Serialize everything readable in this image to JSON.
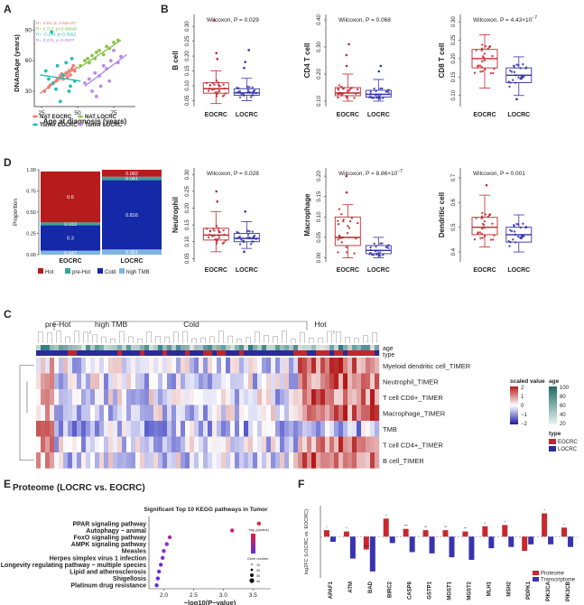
{
  "panels": {
    "A": "A",
    "B": "B",
    "C": "C",
    "D": "D",
    "E": "E",
    "F": "F"
  },
  "chart_data": [
    {
      "id": "A",
      "type": "scatter",
      "xlabel": "Age at diagnosis (years)",
      "ylabel": "DNAmAge (years)",
      "xticks": [
        "25",
        "50",
        "75"
      ],
      "yticks": [
        "30",
        "60",
        "90"
      ],
      "xlim": [
        20,
        90
      ],
      "ylim": [
        15,
        100
      ],
      "annotations": [
        "R= 0.64, p=3.52e-07",
        "R= 0.717, p=0.00045",
        "R= -0.144, p=0.3552",
        "R= 0.276, p=0.0507"
      ],
      "annotation_colors": [
        "#e8776d",
        "#7ab34a",
        "#1fb8b0",
        "#b27ce0"
      ],
      "legend": [
        "NAT EOCRC",
        "NAT LOCRC",
        "Tumor EOCRC",
        "Tumor LOCRC"
      ],
      "colors": [
        "#f07f76",
        "#8bc34a",
        "#23bcb4",
        "#b98ae6"
      ],
      "fits": [
        {
          "x": [
            24,
            50
          ],
          "y": [
            28,
            54
          ]
        },
        {
          "x": [
            50,
            80
          ],
          "y": [
            52,
            80
          ]
        },
        {
          "x": [
            24,
            52
          ],
          "y": [
            46,
            40
          ]
        },
        {
          "x": [
            55,
            84
          ],
          "y": [
            35,
            66
          ]
        }
      ],
      "series": [
        {
          "name": "NAT EOCRC",
          "points": [
            [
              27,
              30
            ],
            [
              30,
              34
            ],
            [
              33,
              38
            ],
            [
              35,
              40
            ],
            [
              38,
              45
            ],
            [
              40,
              42
            ],
            [
              42,
              48
            ],
            [
              44,
              50
            ],
            [
              45,
              46
            ],
            [
              46,
              52
            ],
            [
              47,
              55
            ],
            [
              48,
              50
            ],
            [
              36,
              42
            ],
            [
              31,
              36
            ],
            [
              43,
              44
            ],
            [
              39,
              47
            ]
          ]
        },
        {
          "name": "NAT LOCRC",
          "points": [
            [
              52,
              55
            ],
            [
              55,
              60
            ],
            [
              58,
              58
            ],
            [
              60,
              65
            ],
            [
              62,
              62
            ],
            [
              65,
              70
            ],
            [
              68,
              66
            ],
            [
              70,
              74
            ],
            [
              72,
              72
            ],
            [
              75,
              78
            ],
            [
              78,
              80
            ],
            [
              63,
              68
            ],
            [
              57,
              62
            ]
          ]
        },
        {
          "name": "Tumor EOCRC",
          "points": [
            [
              28,
              50
            ],
            [
              30,
              42
            ],
            [
              33,
              38
            ],
            [
              36,
              55
            ],
            [
              40,
              46
            ],
            [
              44,
              30
            ],
            [
              46,
              62
            ],
            [
              48,
              40
            ],
            [
              35,
              32
            ],
            [
              42,
              58
            ],
            [
              32,
              88
            ],
            [
              38,
              20
            ],
            [
              45,
              35
            ]
          ]
        },
        {
          "name": "Tumor LOCRC",
          "points": [
            [
              55,
              38
            ],
            [
              58,
              42
            ],
            [
              60,
              30
            ],
            [
              62,
              48
            ],
            [
              65,
              45
            ],
            [
              68,
              55
            ],
            [
              70,
              52
            ],
            [
              73,
              60
            ],
            [
              75,
              70
            ],
            [
              78,
              58
            ],
            [
              80,
              64
            ],
            [
              72,
              40
            ],
            [
              66,
              35
            ],
            [
              63,
              25
            ]
          ]
        }
      ]
    },
    {
      "id": "B1",
      "type": "box",
      "ylabel": "B cell",
      "test": "Wilcoxon, P = 0.029",
      "categories": [
        "EOCRC",
        "LOCRC"
      ],
      "yticks": [
        "0.05",
        "0.10",
        "0.15",
        "0.20",
        "0.25",
        "0.30"
      ],
      "ylim": [
        0.03,
        0.34
      ],
      "boxes": [
        {
          "min": 0.04,
          "q1": 0.075,
          "median": 0.09,
          "q3": 0.11,
          "max": 0.15,
          "outliers": [
            0.19,
            0.21,
            0.32
          ]
        },
        {
          "min": 0.05,
          "q1": 0.068,
          "median": 0.076,
          "q3": 0.09,
          "max": 0.125,
          "outliers": [
            0.16,
            0.18,
            0.22
          ]
        }
      ]
    },
    {
      "id": "B2",
      "type": "box",
      "ylabel": "CD4 T cell",
      "test": "Wilcoxon, P = 0.068",
      "categories": [
        "EOCRC",
        "LOCRC"
      ],
      "yticks": [
        "0.10",
        "0.20",
        "0.30",
        "0.40"
      ],
      "ylim": [
        0.08,
        0.42
      ],
      "boxes": [
        {
          "min": 0.1,
          "q1": 0.12,
          "median": 0.13,
          "q3": 0.15,
          "max": 0.2,
          "outliers": [
            0.23,
            0.27,
            0.31
          ]
        },
        {
          "min": 0.1,
          "q1": 0.115,
          "median": 0.125,
          "q3": 0.14,
          "max": 0.18,
          "outliers": [
            0.21,
            0.23
          ]
        }
      ]
    },
    {
      "id": "B3",
      "type": "box",
      "ylabel": "CD8 T cell",
      "test": "Wilcoxon, P = 4.43×10",
      "test_exp": "−7",
      "categories": [
        "EOCRC",
        "LOCRC"
      ],
      "yticks": [
        "0.10",
        "0.15",
        "0.20",
        "0.25",
        "0.30"
      ],
      "ylim": [
        0.07,
        0.32
      ],
      "boxes": [
        {
          "min": 0.12,
          "q1": 0.175,
          "median": 0.2,
          "q3": 0.225,
          "max": 0.265,
          "outliers": []
        },
        {
          "min": 0.1,
          "q1": 0.135,
          "median": 0.155,
          "q3": 0.175,
          "max": 0.205,
          "outliers": [
            0.09
          ]
        }
      ]
    },
    {
      "id": "D0",
      "type": "stacked-bar",
      "ylabel": "Proportion",
      "categories": [
        "EOCRC",
        "LOCRC"
      ],
      "yticks": [
        "0.00",
        "0.25",
        "0.50",
        "0.75",
        "1.00"
      ],
      "series": [
        {
          "name": "high TMB",
          "values": [
            0.047,
            0.061
          ],
          "labels": [
            "0.047",
            "0.061"
          ],
          "color": "#7fb4e0"
        },
        {
          "name": "Cold",
          "values": [
            0.3,
            0.816
          ],
          "labels": [
            "0.3",
            "0.816"
          ],
          "color": "#1428a8"
        },
        {
          "name": "pre-Hot",
          "values": [
            0.033,
            0.041
          ],
          "labels": [
            "0.033",
            "0.041"
          ],
          "color": "#3aa39c"
        },
        {
          "name": "Hot",
          "values": [
            0.6,
            0.082
          ],
          "labels": [
            "0.6",
            "0.082"
          ],
          "color": "#b71c1c"
        }
      ],
      "legend": [
        "Hot",
        "pre-Hot",
        "Cold",
        "high TMB"
      ]
    },
    {
      "id": "D1",
      "type": "box",
      "ylabel": "Neutrophil",
      "test": "Wilcoxon, P = 0.028",
      "categories": [
        "EOCRC",
        "LOCRC"
      ],
      "yticks": [
        "0.05",
        "0.10",
        "0.15",
        "0.20",
        "0.25",
        "0.30"
      ],
      "ylim": [
        0.04,
        0.32
      ],
      "boxes": [
        {
          "min": 0.07,
          "q1": 0.105,
          "median": 0.12,
          "q3": 0.14,
          "max": 0.19,
          "outliers": [
            0.22,
            0.25
          ]
        },
        {
          "min": 0.08,
          "q1": 0.1,
          "median": 0.11,
          "q3": 0.125,
          "max": 0.16,
          "outliers": [
            0.07,
            0.19
          ]
        }
      ]
    },
    {
      "id": "D2",
      "type": "box",
      "ylabel": "Macrophage",
      "test": "Wilcoxon, P = 8.86×10",
      "test_exp": "−7",
      "categories": [
        "EOCRC",
        "LOCRC"
      ],
      "yticks": [
        "0.00",
        "0.05",
        "0.10",
        "0.15",
        "0.20"
      ],
      "ylim": [
        -0.01,
        0.22
      ],
      "boxes": [
        {
          "min": 0.0,
          "q1": 0.03,
          "median": 0.05,
          "q3": 0.1,
          "max": 0.13,
          "outliers": [
            0.16,
            0.2
          ]
        },
        {
          "min": 0.0,
          "q1": 0.01,
          "median": 0.018,
          "q3": 0.03,
          "max": 0.05,
          "outliers": []
        }
      ]
    },
    {
      "id": "D3",
      "type": "box",
      "ylabel": "Dendritic cell",
      "test": "Wilcoxon, P = 0.001",
      "categories": [
        "EOCRC",
        "LOCRC"
      ],
      "yticks": [
        "0.4",
        "0.5",
        "0.6",
        "0.7"
      ],
      "ylim": [
        0.36,
        0.74
      ],
      "boxes": [
        {
          "min": 0.42,
          "q1": 0.47,
          "median": 0.5,
          "q3": 0.54,
          "max": 0.63,
          "outliers": [
            0.67
          ]
        },
        {
          "min": 0.4,
          "q1": 0.44,
          "median": 0.47,
          "q3": 0.5,
          "max": 0.55,
          "outliers": []
        }
      ]
    },
    {
      "id": "C",
      "type": "heatmap",
      "groups": [
        "pre-Hot",
        "high TMB",
        "Cold",
        "Hot"
      ],
      "rows": [
        "Myeloid dendritic cell_TIMER",
        "Neutrophil_TIMER",
        "T cell CD8+_TIMER",
        "Macrophage_TIMER",
        "TMB",
        "T cell CD4+_TIMER",
        "B cell_TIMER"
      ],
      "annotation_rows": [
        "age",
        "type"
      ],
      "scale_title": "scaled value",
      "scale_ticks": [
        "2",
        "1",
        "0",
        "−1",
        "−2"
      ],
      "age_title": "age",
      "age_ticks": [
        "100",
        "80",
        "60",
        "40",
        "20"
      ],
      "type_title": "type",
      "type_legend": [
        "EOCRC",
        "LOCRC"
      ]
    },
    {
      "id": "E",
      "type": "scatter",
      "title": "Significant Top 10 KEGG pathways in Tumor",
      "xlabel": "−log10(P−value)",
      "xticks": [
        "2.0",
        "2.5",
        "3.0",
        "3.5"
      ],
      "xlim": [
        1.75,
        3.8
      ],
      "categories": [
        "PPAR signaling pathway",
        "Autophagy − animal",
        "FoxO signaling pathway",
        "AMPK signaling pathway",
        "Measles",
        "Herpes simplex virus 1 infection",
        "Longevity regulating pathway − multiple species",
        "Lipid and atherosclerosis",
        "Shigellosis",
        "Platinum drug resistance"
      ],
      "x": [
        3.6,
        3.15,
        2.1,
        2.05,
        2.0,
        1.98,
        1.95,
        1.92,
        1.9,
        1.88
      ],
      "point_colors": [
        "#e8203a",
        "#d02070",
        "#a030b0",
        "#9030c0",
        "#8a30c8",
        "#7a30d0",
        "#7030d0",
        "#6a30d8",
        "#6030e0",
        "#5a30e0"
      ],
      "color_title": "−log₁₀(qvalue)",
      "size_title": "Gene number",
      "size_ticks": [
        "10",
        "20",
        "30",
        "40"
      ]
    },
    {
      "id": "F",
      "type": "bar",
      "ylabel": "log2FC (LOCRC vs. EOCRC)",
      "categories": [
        "APAF1",
        "ATM",
        "BAD",
        "BIRC2",
        "CASP8",
        "GSTP1",
        "MGST1",
        "MGST2",
        "MLH1",
        "MSH2",
        "PDPK1",
        "PIK3CA",
        "PIK3CB"
      ],
      "series": [
        {
          "name": "Proteome",
          "values": [
            0.25,
            0.2,
            -0.5,
            0.7,
            0.3,
            0.25,
            0.25,
            0.2,
            0.4,
            0.45,
            -0.55,
            0.9,
            0.35
          ],
          "color": "#c8282e"
        },
        {
          "name": "Transcriptome",
          "values": [
            -0.2,
            -0.85,
            -1.35,
            -0.25,
            -0.6,
            -0.65,
            -0.8,
            -0.9,
            -0.45,
            -0.4,
            -0.3,
            -0.3,
            -0.4
          ],
          "color": "#3834b0"
        }
      ],
      "star_labels": [
        "*",
        "*",
        "****",
        "*",
        "***",
        "**",
        "**",
        "**",
        "*",
        "*",
        "*",
        "*",
        "*"
      ],
      "ylim": [
        -1.6,
        1.2
      ]
    }
  ],
  "proteome_title": "Proteome (LOCRC vs. EOCRC)"
}
